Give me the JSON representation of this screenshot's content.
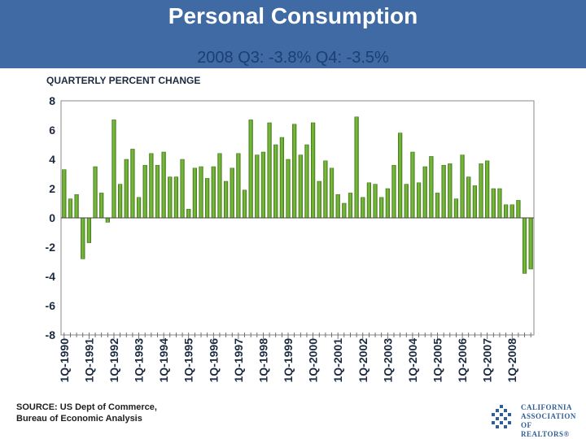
{
  "header": {
    "title": "Personal Consumption",
    "subtitle": "2008 Q3: -3.8% Q4: -3.5%"
  },
  "footer": {
    "source_line1": "SOURCE:  US Dept of Commerce,",
    "source_line2": "Bureau of Economic Analysis"
  },
  "logo": {
    "line1": "CALIFORNIA",
    "line2": "ASSOCIATION",
    "line3": "OF REALTORS®"
  },
  "colors": {
    "banner": "#3f6aa3",
    "bar": "#7fc241",
    "bar_dark": "#4e8a1e",
    "subtitle": "#1c3f74"
  },
  "chart_data": {
    "type": "bar",
    "ylabel": "QUARTERLY PERCENT CHANGE",
    "ylim": [
      -8,
      8
    ],
    "yticks": [
      8,
      6,
      4,
      2,
      0,
      -2,
      -4,
      -6,
      -8
    ],
    "grid": false,
    "year_labels": [
      "1Q-1990",
      "1Q-1991",
      "1Q-1992",
      "1Q-1993",
      "1Q-1994",
      "1Q-1995",
      "1Q-1996",
      "1Q-1997",
      "1Q-1998",
      "1Q-1999",
      "1Q-2000",
      "1Q-2001",
      "1Q-2002",
      "1Q-2003",
      "1Q-2004",
      "1Q-2005",
      "1Q-2006",
      "1Q-2007",
      "1Q-2008"
    ],
    "values": [
      3.3,
      1.3,
      1.6,
      -2.8,
      -1.7,
      3.5,
      1.7,
      -0.3,
      6.7,
      2.3,
      4.0,
      4.7,
      1.4,
      3.6,
      4.4,
      3.6,
      4.5,
      2.8,
      2.8,
      4.0,
      0.6,
      3.4,
      3.5,
      2.7,
      3.5,
      4.4,
      2.5,
      3.4,
      4.4,
      1.9,
      6.7,
      4.3,
      4.5,
      6.5,
      5.0,
      5.5,
      4.0,
      6.4,
      4.3,
      5.0,
      6.5,
      2.5,
      3.9,
      3.4,
      1.6,
      1.0,
      1.7,
      6.9,
      1.4,
      2.4,
      2.3,
      1.4,
      2.0,
      3.6,
      5.8,
      2.3,
      4.5,
      2.4,
      3.5,
      4.2,
      1.7,
      3.6,
      3.7,
      1.3,
      4.3,
      2.8,
      2.2,
      3.7,
      3.9,
      2.0,
      2.0,
      0.9,
      0.9,
      1.2,
      -3.8,
      -3.5
    ]
  }
}
